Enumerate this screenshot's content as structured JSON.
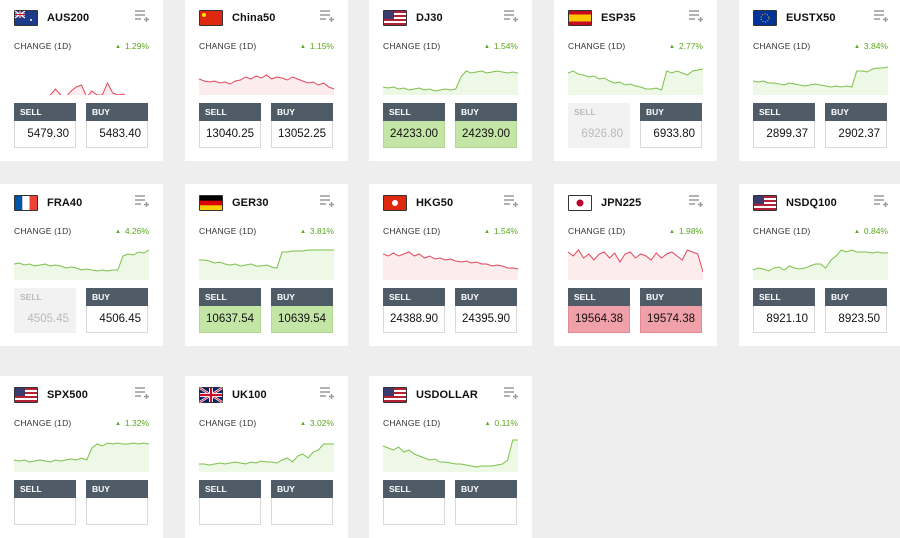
{
  "colors": {
    "up": "#7cc04a",
    "down": "#e0465a",
    "up_fill": "#eef8e6",
    "down_fill": "#fdecee"
  },
  "labels": {
    "change": "CHANGE (1D)",
    "sell": "SELL",
    "buy": "BUY"
  },
  "instruments": [
    {
      "symbol": "AUS200",
      "flag": "au",
      "change": "1.29%",
      "trend": "down",
      "sell": "5479.30",
      "buy": "5483.40",
      "sell_state": "normal",
      "buy_state": "normal",
      "spark": [
        40,
        40,
        41,
        39,
        38,
        37,
        38,
        36,
        30,
        36,
        38,
        32,
        28,
        26,
        38,
        32,
        36,
        36,
        24,
        34,
        36,
        35,
        38,
        37,
        38,
        40,
        40
      ]
    },
    {
      "symbol": "China50",
      "flag": "cn",
      "change": "1.15%",
      "trend": "down",
      "sell": "13040.25",
      "buy": "13052.25",
      "sell_state": "normal",
      "buy_state": "normal",
      "spark": [
        20,
        22,
        23,
        22,
        24,
        23,
        25,
        22,
        21,
        18,
        20,
        17,
        19,
        16,
        20,
        18,
        19,
        21,
        18,
        20,
        22,
        24,
        23,
        26,
        24,
        28,
        30
      ]
    },
    {
      "symbol": "DJ30",
      "flag": "us",
      "change": "1.54%",
      "trend": "up",
      "sell": "24233.00",
      "buy": "24239.00",
      "sell_state": "up",
      "buy_state": "up",
      "spark": [
        28,
        29,
        28,
        30,
        29,
        31,
        30,
        29,
        31,
        30,
        32,
        31,
        30,
        31,
        30,
        18,
        12,
        14,
        13,
        12,
        14,
        13,
        12,
        13,
        14,
        13,
        14
      ]
    },
    {
      "symbol": "ESP35",
      "flag": "es",
      "change": "2.77%",
      "trend": "up",
      "sell": "6926.80",
      "buy": "6933.80",
      "sell_state": "disabled",
      "buy_state": "normal",
      "spark": [
        14,
        12,
        15,
        16,
        18,
        17,
        20,
        19,
        22,
        24,
        23,
        26,
        25,
        27,
        28,
        30,
        30,
        29,
        31,
        12,
        14,
        12,
        14,
        16,
        12,
        11,
        10
      ]
    },
    {
      "symbol": "EUSTX50",
      "flag": "eu",
      "change": "3.84%",
      "trend": "up",
      "sell": "2899.37",
      "buy": "2902.37",
      "sell_state": "normal",
      "buy_state": "normal",
      "spark": [
        22,
        23,
        22,
        24,
        24,
        25,
        26,
        24,
        25,
        26,
        27,
        26,
        25,
        26,
        27,
        28,
        27,
        28,
        27,
        28,
        12,
        12,
        13,
        10,
        9,
        9,
        8
      ]
    },
    {
      "symbol": "FRA40",
      "flag": "fr",
      "change": "4.26%",
      "trend": "up",
      "sell": "4505.45",
      "buy": "4506.45",
      "sell_state": "disabled",
      "buy_state": "normal",
      "spark": [
        20,
        19,
        21,
        20,
        22,
        21,
        20,
        22,
        21,
        22,
        24,
        23,
        24,
        26,
        25,
        26,
        27,
        26,
        27,
        26,
        26,
        12,
        10,
        11,
        8,
        9,
        6
      ]
    },
    {
      "symbol": "GER30",
      "flag": "de",
      "change": "3.81%",
      "trend": "up",
      "sell": "10637.54",
      "buy": "10639.54",
      "sell_state": "up",
      "buy_state": "up",
      "spark": [
        16,
        16,
        17,
        19,
        18,
        20,
        21,
        20,
        22,
        21,
        20,
        22,
        22,
        21,
        23,
        24,
        8,
        8,
        7,
        7,
        7,
        6,
        6,
        6,
        6,
        6,
        6
      ]
    },
    {
      "symbol": "HKG50",
      "flag": "hk",
      "change": "1.54%",
      "trend": "down",
      "sell": "24388.90",
      "buy": "24395.90",
      "sell_state": "normal",
      "buy_state": "normal",
      "spark": [
        10,
        12,
        9,
        12,
        10,
        8,
        12,
        10,
        14,
        12,
        15,
        14,
        16,
        15,
        17,
        18,
        17,
        19,
        18,
        20,
        20,
        22,
        21,
        22,
        24,
        24,
        25
      ]
    },
    {
      "symbol": "JPN225",
      "flag": "jp",
      "change": "1.98%",
      "trend": "down",
      "sell": "19564.38",
      "buy": "19574.38",
      "sell_state": "down",
      "buy_state": "down",
      "spark": [
        8,
        12,
        6,
        14,
        10,
        16,
        10,
        8,
        14,
        9,
        18,
        10,
        8,
        14,
        10,
        12,
        16,
        9,
        14,
        10,
        8,
        12,
        16,
        6,
        8,
        10,
        28
      ]
    },
    {
      "symbol": "NSDQ100",
      "flag": "us",
      "change": "0.84%",
      "trend": "up",
      "sell": "8921.10",
      "buy": "8923.50",
      "sell_state": "normal",
      "buy_state": "normal",
      "spark": [
        26,
        24,
        25,
        27,
        24,
        23,
        26,
        22,
        24,
        25,
        24,
        22,
        20,
        20,
        24,
        16,
        12,
        6,
        8,
        6,
        8,
        8,
        8,
        9,
        8,
        9,
        9
      ]
    },
    {
      "symbol": "SPX500",
      "flag": "us",
      "change": "1.32%",
      "trend": "up",
      "sell": "",
      "buy": "",
      "sell_state": "normal",
      "buy_state": "normal",
      "spark": [
        24,
        25,
        24,
        26,
        25,
        24,
        25,
        26,
        24,
        25,
        24,
        23,
        24,
        22,
        24,
        12,
        8,
        10,
        7,
        8,
        7,
        8,
        8,
        7,
        8,
        7,
        8
      ]
    },
    {
      "symbol": "UK100",
      "flag": "uk",
      "change": "3.02%",
      "trend": "up",
      "sell": "",
      "buy": "",
      "sell_state": "normal",
      "buy_state": "normal",
      "spark": [
        28,
        28,
        29,
        28,
        27,
        28,
        27,
        26,
        27,
        28,
        26,
        27,
        25,
        26,
        26,
        27,
        24,
        22,
        26,
        20,
        18,
        22,
        16,
        14,
        8,
        8,
        8
      ]
    },
    {
      "symbol": "USDOLLAR",
      "flag": "us",
      "change": "0.11%",
      "trend": "up",
      "sell": "",
      "buy": "",
      "sell_state": "normal",
      "buy_state": "normal",
      "spark": [
        10,
        12,
        14,
        11,
        16,
        14,
        18,
        20,
        22,
        24,
        23,
        26,
        26,
        27,
        28,
        28,
        29,
        30,
        31,
        30,
        30,
        30,
        29,
        28,
        24,
        4,
        4
      ]
    }
  ]
}
